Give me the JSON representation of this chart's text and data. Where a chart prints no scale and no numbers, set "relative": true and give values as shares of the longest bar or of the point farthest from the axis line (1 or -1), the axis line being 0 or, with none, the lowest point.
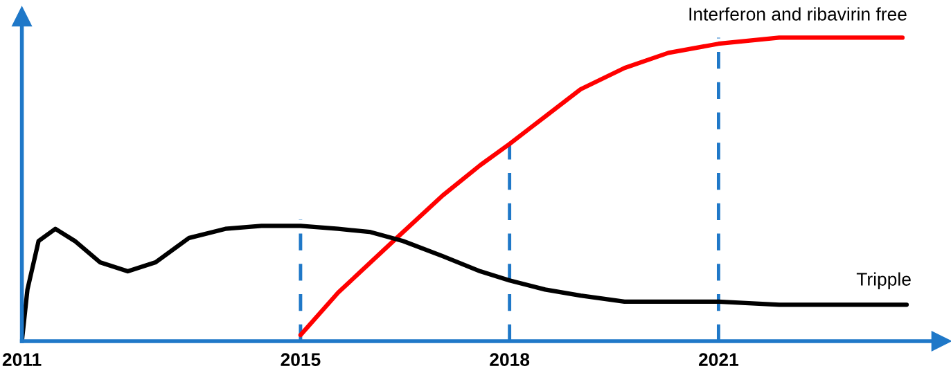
{
  "chart_data": {
    "type": "line",
    "relative": true,
    "xlim": [
      2011,
      2024.2
    ],
    "xticks": [
      2011,
      2015,
      2018,
      2021
    ],
    "series": [
      {
        "name": "Interferon and ribavirin free",
        "color": "#ff0000",
        "x": [
          2015,
          2015.54,
          2016.38,
          2017.04,
          2017.58,
          2018,
          2018.51,
          2019.02,
          2019.65,
          2020.28,
          2021,
          2021.87,
          2022.77,
          2023.64
        ],
        "values": [
          0.02,
          0.16,
          0.34,
          0.48,
          0.58,
          0.65,
          0.74,
          0.83,
          0.9,
          0.95,
          0.98,
          1.0,
          1.0,
          1.0
        ]
      },
      {
        "name": "Tripple",
        "color": "#000000",
        "x": [
          2011,
          2011.08,
          2011.24,
          2011.48,
          2011.76,
          2012.12,
          2012.52,
          2012.92,
          2013.4,
          2013.92,
          2014.44,
          2015,
          2015.54,
          2015.99,
          2016.47,
          2017.04,
          2017.58,
          2018,
          2018.51,
          2019.02,
          2019.65,
          2020.55,
          2021,
          2021.87,
          2022.77,
          2023.7
        ],
        "values": [
          0,
          0.17,
          0.33,
          0.37,
          0.33,
          0.26,
          0.23,
          0.26,
          0.34,
          0.37,
          0.38,
          0.38,
          0.37,
          0.36,
          0.33,
          0.28,
          0.23,
          0.2,
          0.17,
          0.15,
          0.13,
          0.13,
          0.13,
          0.12,
          0.12,
          0.12
        ]
      }
    ],
    "ref_lines": [
      {
        "axis": "x",
        "value": 2015,
        "color": "#1f78c8",
        "line_style": "dashed"
      },
      {
        "axis": "x",
        "value": 2018,
        "color": "#1f78c8",
        "line_style": "dashed"
      },
      {
        "axis": "x",
        "value": 2021,
        "color": "#1f78c8",
        "line_style": "dashed"
      }
    ],
    "grid": false,
    "legend": false
  }
}
